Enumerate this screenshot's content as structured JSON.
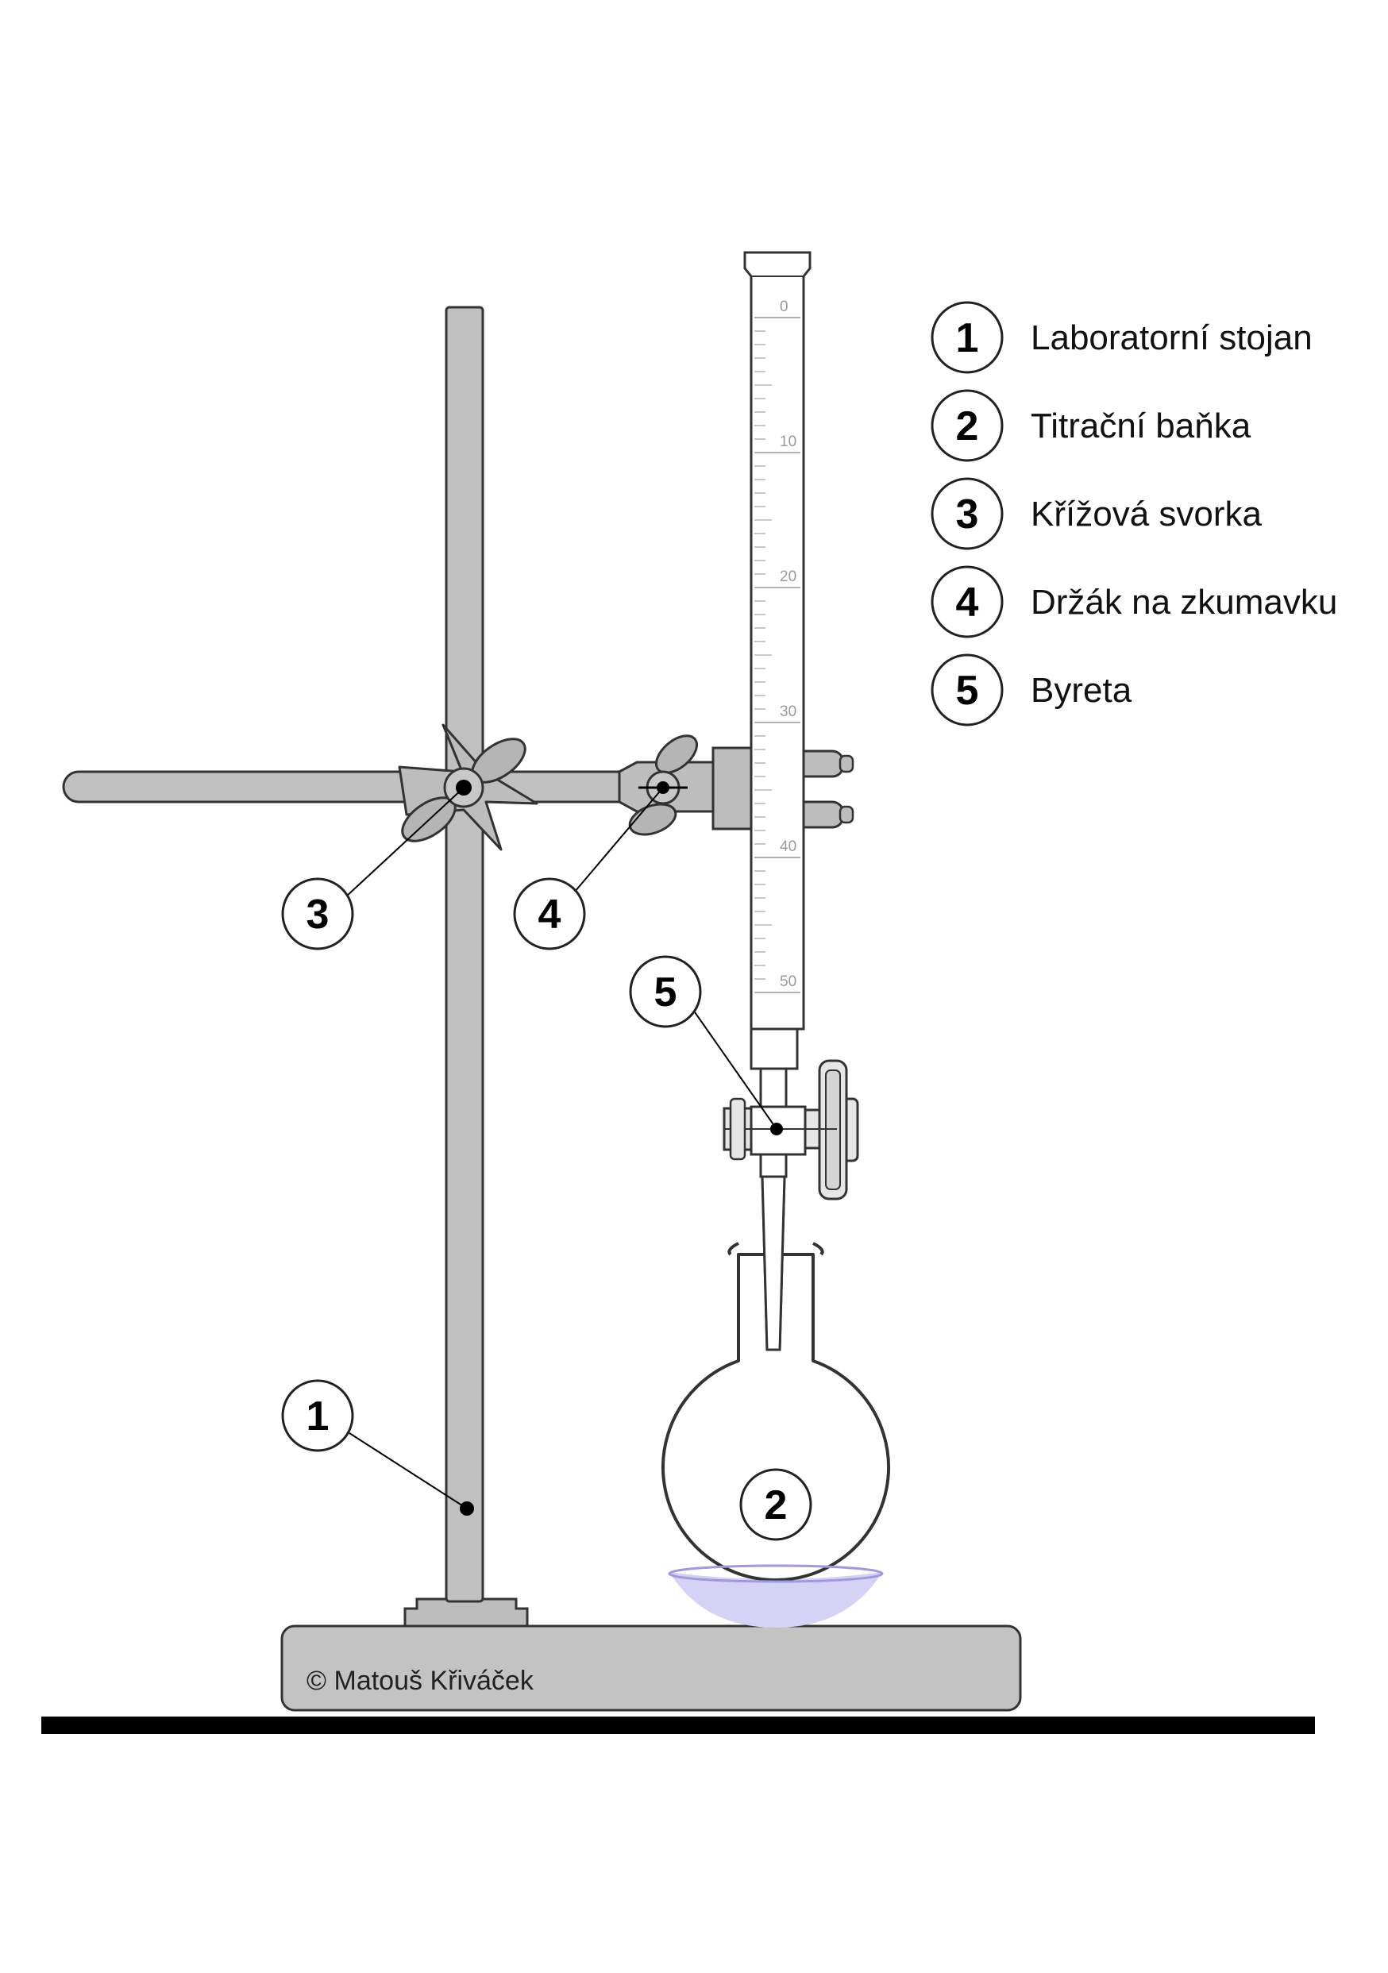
{
  "legend": [
    {
      "num": "1",
      "label": "Laboratorní stojan"
    },
    {
      "num": "2",
      "label": "Titrační baňka"
    },
    {
      "num": "3",
      "label": "Křížová svorka"
    },
    {
      "num": "4",
      "label": "Držák na zkumavku"
    },
    {
      "num": "5",
      "label": "Byreta"
    }
  ],
  "callouts": {
    "c1": "1",
    "c2": "2",
    "c3": "3",
    "c4": "4",
    "c5": "5"
  },
  "burette_scale": [
    "0",
    "10",
    "20",
    "30",
    "40",
    "50"
  ],
  "copyright": "© Matouš Křiváček",
  "colors": {
    "metal": "#c0c0c0",
    "metal_dark": "#a9a9a9",
    "glass": "#ffffff",
    "liquid": "#d4d2f5",
    "liquid_line": "#9e9ae0",
    "ground": "#000000",
    "outline": "#333333"
  }
}
